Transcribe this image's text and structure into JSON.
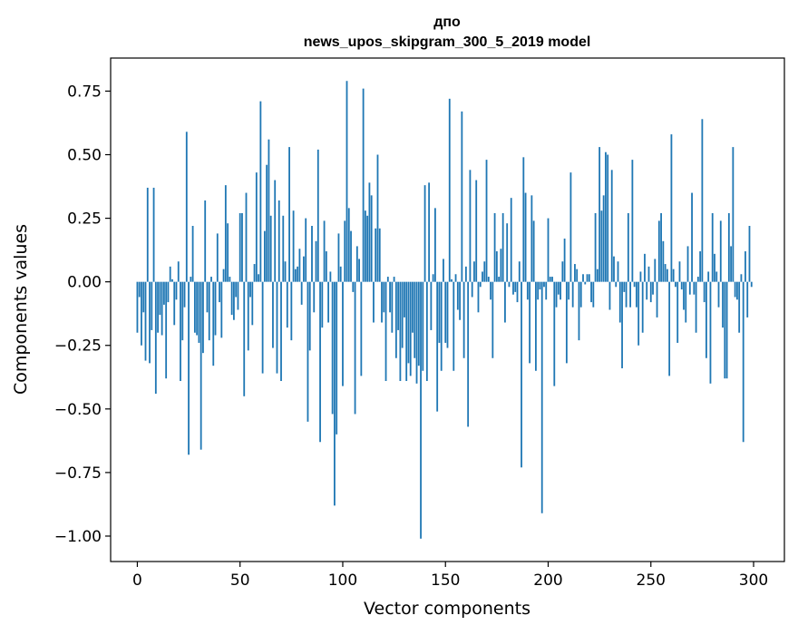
{
  "title_line1": "дпо",
  "title_line2": "news_upos_skipgram_300_5_2019 model",
  "colors": {
    "bar": "#1f77b4",
    "axes": "#000000",
    "background": "#ffffff"
  },
  "chart_data": {
    "type": "bar",
    "title": "дпо\nnews_upos_skipgram_300_5_2019 model",
    "xlabel": "Vector components",
    "ylabel": "Components values",
    "xlim": [
      -13,
      315
    ],
    "ylim": [
      -1.1,
      0.88
    ],
    "grid": false,
    "legend": null,
    "x_ticks": [
      0,
      50,
      100,
      150,
      200,
      250,
      300
    ],
    "x_tick_labels": [
      "0",
      "50",
      "100",
      "150",
      "200",
      "250",
      "300"
    ],
    "y_ticks": [
      0.75,
      0.5,
      0.25,
      0.0,
      -0.25,
      -0.5,
      -0.75,
      -1.0
    ],
    "y_tick_labels": [
      "0.75",
      "0.50",
      "0.25",
      "0.00",
      "−0.25",
      "−0.50",
      "−0.75",
      "−1.00"
    ],
    "x": "0..299 (component index)",
    "values": [
      -0.2,
      -0.06,
      -0.25,
      -0.12,
      -0.31,
      0.37,
      -0.32,
      -0.19,
      0.37,
      -0.44,
      -0.2,
      -0.13,
      -0.21,
      -0.09,
      -0.38,
      -0.08,
      0.06,
      0.01,
      -0.17,
      -0.07,
      0.08,
      -0.39,
      -0.23,
      -0.1,
      0.59,
      -0.68,
      0.02,
      0.22,
      -0.2,
      -0.21,
      -0.24,
      -0.66,
      -0.28,
      0.32,
      -0.12,
      -0.23,
      0.02,
      -0.33,
      -0.21,
      0.19,
      -0.08,
      -0.22,
      0.05,
      0.38,
      0.23,
      0.02,
      -0.13,
      -0.15,
      -0.06,
      -0.11,
      0.27,
      0.27,
      -0.45,
      0.35,
      -0.27,
      -0.06,
      -0.17,
      0.07,
      0.43,
      0.03,
      0.71,
      -0.36,
      0.2,
      0.46,
      0.56,
      0.26,
      -0.26,
      0.4,
      -0.36,
      0.32,
      -0.39,
      0.26,
      0.08,
      -0.18,
      0.53,
      -0.23,
      0.28,
      0.05,
      0.06,
      0.13,
      -0.09,
      0.1,
      0.25,
      -0.55,
      -0.27,
      0.22,
      -0.12,
      0.16,
      0.52,
      -0.63,
      -0.18,
      0.24,
      0.12,
      -0.16,
      0.04,
      -0.52,
      -0.88,
      -0.6,
      0.19,
      0.06,
      -0.41,
      0.24,
      0.79,
      0.29,
      0.2,
      -0.04,
      -0.52,
      0.14,
      0.09,
      -0.37,
      0.76,
      0.28,
      0.26,
      0.39,
      0.34,
      -0.16,
      0.21,
      0.5,
      0.21,
      -0.16,
      -0.12,
      -0.39,
      0.02,
      -0.12,
      -0.2,
      0.02,
      -0.3,
      -0.19,
      -0.39,
      -0.26,
      -0.14,
      -0.39,
      -0.32,
      -0.37,
      -0.2,
      -0.3,
      -0.4,
      -0.33,
      -1.01,
      -0.35,
      0.38,
      -0.39,
      0.39,
      -0.19,
      0.03,
      0.29,
      -0.51,
      -0.24,
      -0.35,
      0.09,
      -0.24,
      -0.26,
      0.72,
      0.01,
      -0.35,
      0.03,
      -0.11,
      -0.15,
      0.67,
      -0.3,
      0.06,
      -0.57,
      0.44,
      -0.06,
      0.08,
      0.4,
      -0.12,
      -0.02,
      0.04,
      0.08,
      0.48,
      0.02,
      -0.07,
      -0.3,
      0.27,
      0.12,
      0.02,
      0.13,
      0.27,
      -0.16,
      0.23,
      -0.02,
      0.33,
      -0.05,
      -0.04,
      -0.08,
      0.08,
      -0.73,
      0.49,
      0.35,
      -0.07,
      -0.32,
      0.34,
      0.24,
      -0.35,
      -0.07,
      -0.03,
      -0.91,
      -0.02,
      -0.07,
      0.25,
      0.02,
      0.02,
      -0.41,
      -0.1,
      -0.05,
      -0.07,
      0.08,
      0.17,
      -0.32,
      -0.07,
      0.43,
      -0.1,
      0.07,
      0.05,
      -0.23,
      -0.1,
      0.03,
      -0.01,
      0.03,
      0.03,
      -0.08,
      -0.1,
      0.27,
      0.05,
      0.53,
      0.28,
      0.34,
      0.51,
      0.5,
      -0.11,
      0.44,
      0.1,
      -0.02,
      0.08,
      -0.16,
      -0.34,
      -0.04,
      -0.1,
      0.27,
      -0.1,
      0.48,
      -0.02,
      -0.1,
      -0.25,
      0.04,
      -0.2,
      0.11,
      -0.07,
      0.06,
      -0.08,
      -0.05,
      0.09,
      -0.14,
      0.24,
      0.27,
      0.16,
      0.07,
      0.05,
      -0.37,
      0.58,
      0.05,
      -0.02,
      -0.24,
      0.08,
      -0.03,
      -0.11,
      -0.16,
      0.14,
      -0.05,
      0.35,
      -0.05,
      -0.2,
      0.02,
      0.12,
      0.64,
      -0.08,
      -0.3,
      0.04,
      -0.4,
      0.27,
      0.11,
      0.04,
      -0.1,
      0.24,
      -0.18,
      -0.38,
      -0.38,
      0.27,
      0.14,
      0.53,
      -0.06,
      -0.07,
      -0.2,
      0.03,
      -0.63,
      0.12,
      -0.14,
      0.22,
      -0.02
    ]
  }
}
